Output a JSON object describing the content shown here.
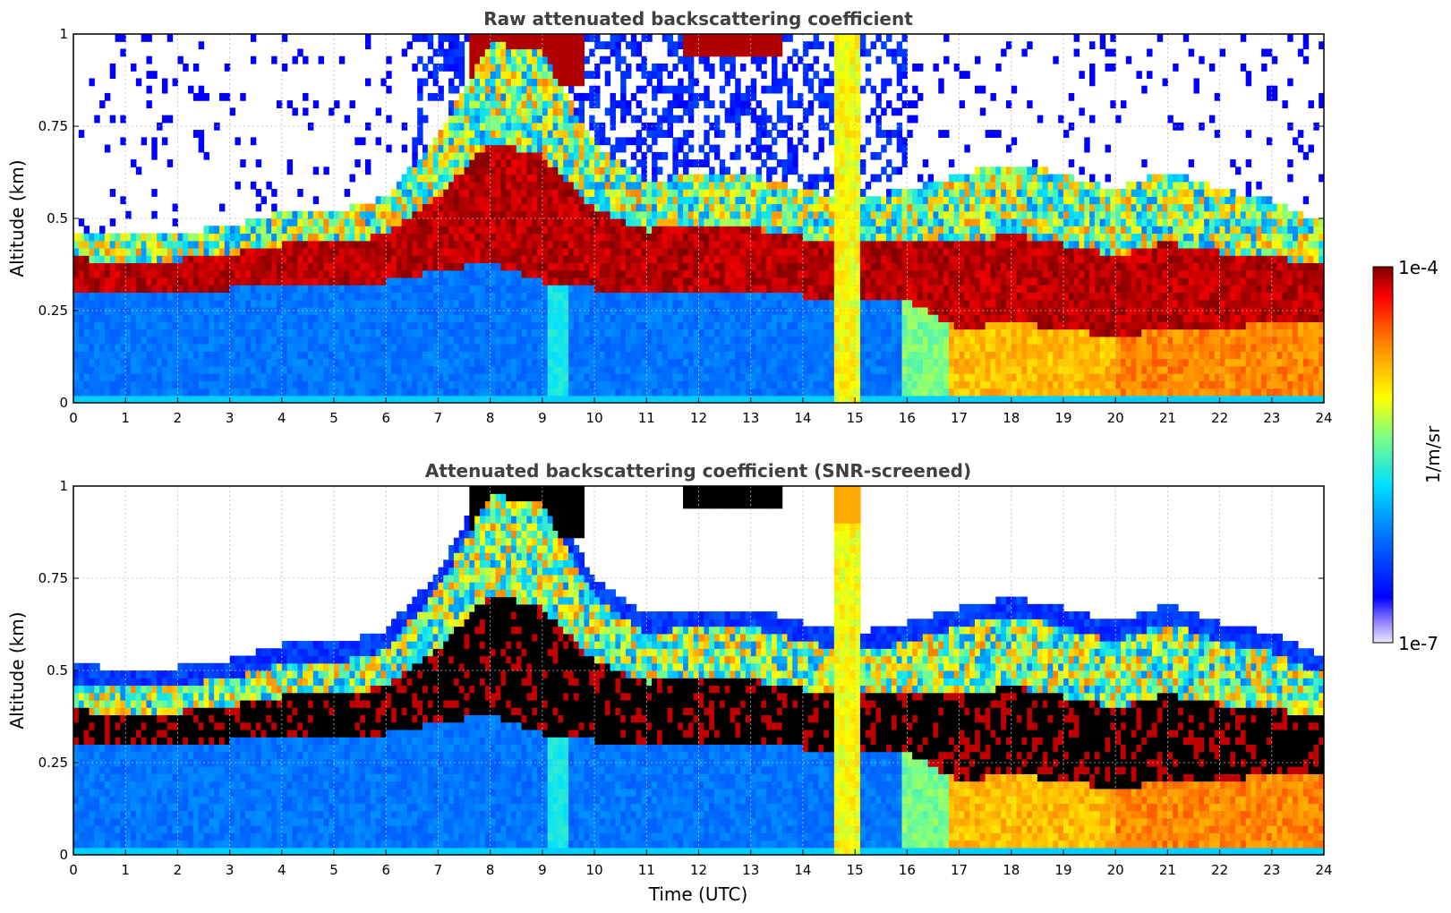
{
  "chart_data": [
    {
      "type": "heatmap",
      "title": "Raw attenuated backscattering coefficient",
      "xlabel": "",
      "ylabel": "Altitude (km)",
      "xlim": [
        0,
        24
      ],
      "ylim": [
        0,
        1
      ],
      "x_ticks": [
        "0",
        "1",
        "2",
        "3",
        "4",
        "5",
        "6",
        "7",
        "8",
        "9",
        "10",
        "11",
        "12",
        "13",
        "14",
        "15",
        "16",
        "17",
        "18",
        "19",
        "20",
        "21",
        "22",
        "23",
        "24"
      ],
      "y_ticks": [
        "0",
        "0.25",
        "0.5",
        "0.75",
        "1"
      ],
      "grid": true,
      "screened": false,
      "cloud_base_km": [
        {
          "t": 0,
          "base": 0.3,
          "top": 0.47
        },
        {
          "t": 1,
          "base": 0.3,
          "top": 0.45
        },
        {
          "t": 2,
          "base": 0.3,
          "top": 0.46
        },
        {
          "t": 3,
          "base": 0.31,
          "top": 0.48
        },
        {
          "t": 4,
          "base": 0.32,
          "top": 0.52
        },
        {
          "t": 5,
          "base": 0.33,
          "top": 0.52
        },
        {
          "t": 6,
          "base": 0.33,
          "top": 0.56
        },
        {
          "t": 7,
          "base": 0.36,
          "top": 0.72
        },
        {
          "t": 8,
          "base": 0.38,
          "top": 0.98
        },
        {
          "t": 9,
          "base": 0.33,
          "top": 0.95
        },
        {
          "t": 10,
          "base": 0.31,
          "top": 0.7
        },
        {
          "t": 11,
          "base": 0.31,
          "top": 0.6
        },
        {
          "t": 12,
          "base": 0.3,
          "top": 0.62
        },
        {
          "t": 13,
          "base": 0.3,
          "top": 0.62
        },
        {
          "t": 14,
          "base": 0.29,
          "top": 0.58
        },
        {
          "t": 15,
          "base": 0.28,
          "top": 0.55
        },
        {
          "t": 16,
          "base": 0.28,
          "top": 0.58
        },
        {
          "t": 17,
          "base": 0.2,
          "top": 0.62
        },
        {
          "t": 18,
          "base": 0.22,
          "top": 0.65
        },
        {
          "t": 19,
          "base": 0.2,
          "top": 0.62
        },
        {
          "t": 20,
          "base": 0.18,
          "top": 0.58
        },
        {
          "t": 21,
          "base": 0.2,
          "top": 0.63
        },
        {
          "t": 22,
          "base": 0.2,
          "top": 0.58
        },
        {
          "t": 23,
          "base": 0.22,
          "top": 0.55
        },
        {
          "t": 23.8,
          "base": 0.22,
          "top": 0.5
        }
      ]
    },
    {
      "type": "heatmap",
      "title": "Attenuated backscattering coefficient (SNR-screened)",
      "xlabel": "Time (UTC)",
      "ylabel": "Altitude (km)",
      "xlim": [
        0,
        24
      ],
      "ylim": [
        0,
        1
      ],
      "x_ticks": [
        "0",
        "1",
        "2",
        "3",
        "4",
        "5",
        "6",
        "7",
        "8",
        "9",
        "10",
        "11",
        "12",
        "13",
        "14",
        "15",
        "16",
        "17",
        "18",
        "19",
        "20",
        "21",
        "22",
        "23",
        "24"
      ],
      "y_ticks": [
        "0",
        "0.25",
        "0.5",
        "0.75",
        "1"
      ],
      "grid": true,
      "screened": true
    }
  ],
  "colorbar": {
    "colormap": "jet",
    "min_label": "1e-7",
    "max_label": "1e-4",
    "label": "1/m/sr",
    "scale": "log"
  },
  "colors": {
    "background": "#ffffff",
    "title": "#404040",
    "grid": "#bbbbbb"
  }
}
